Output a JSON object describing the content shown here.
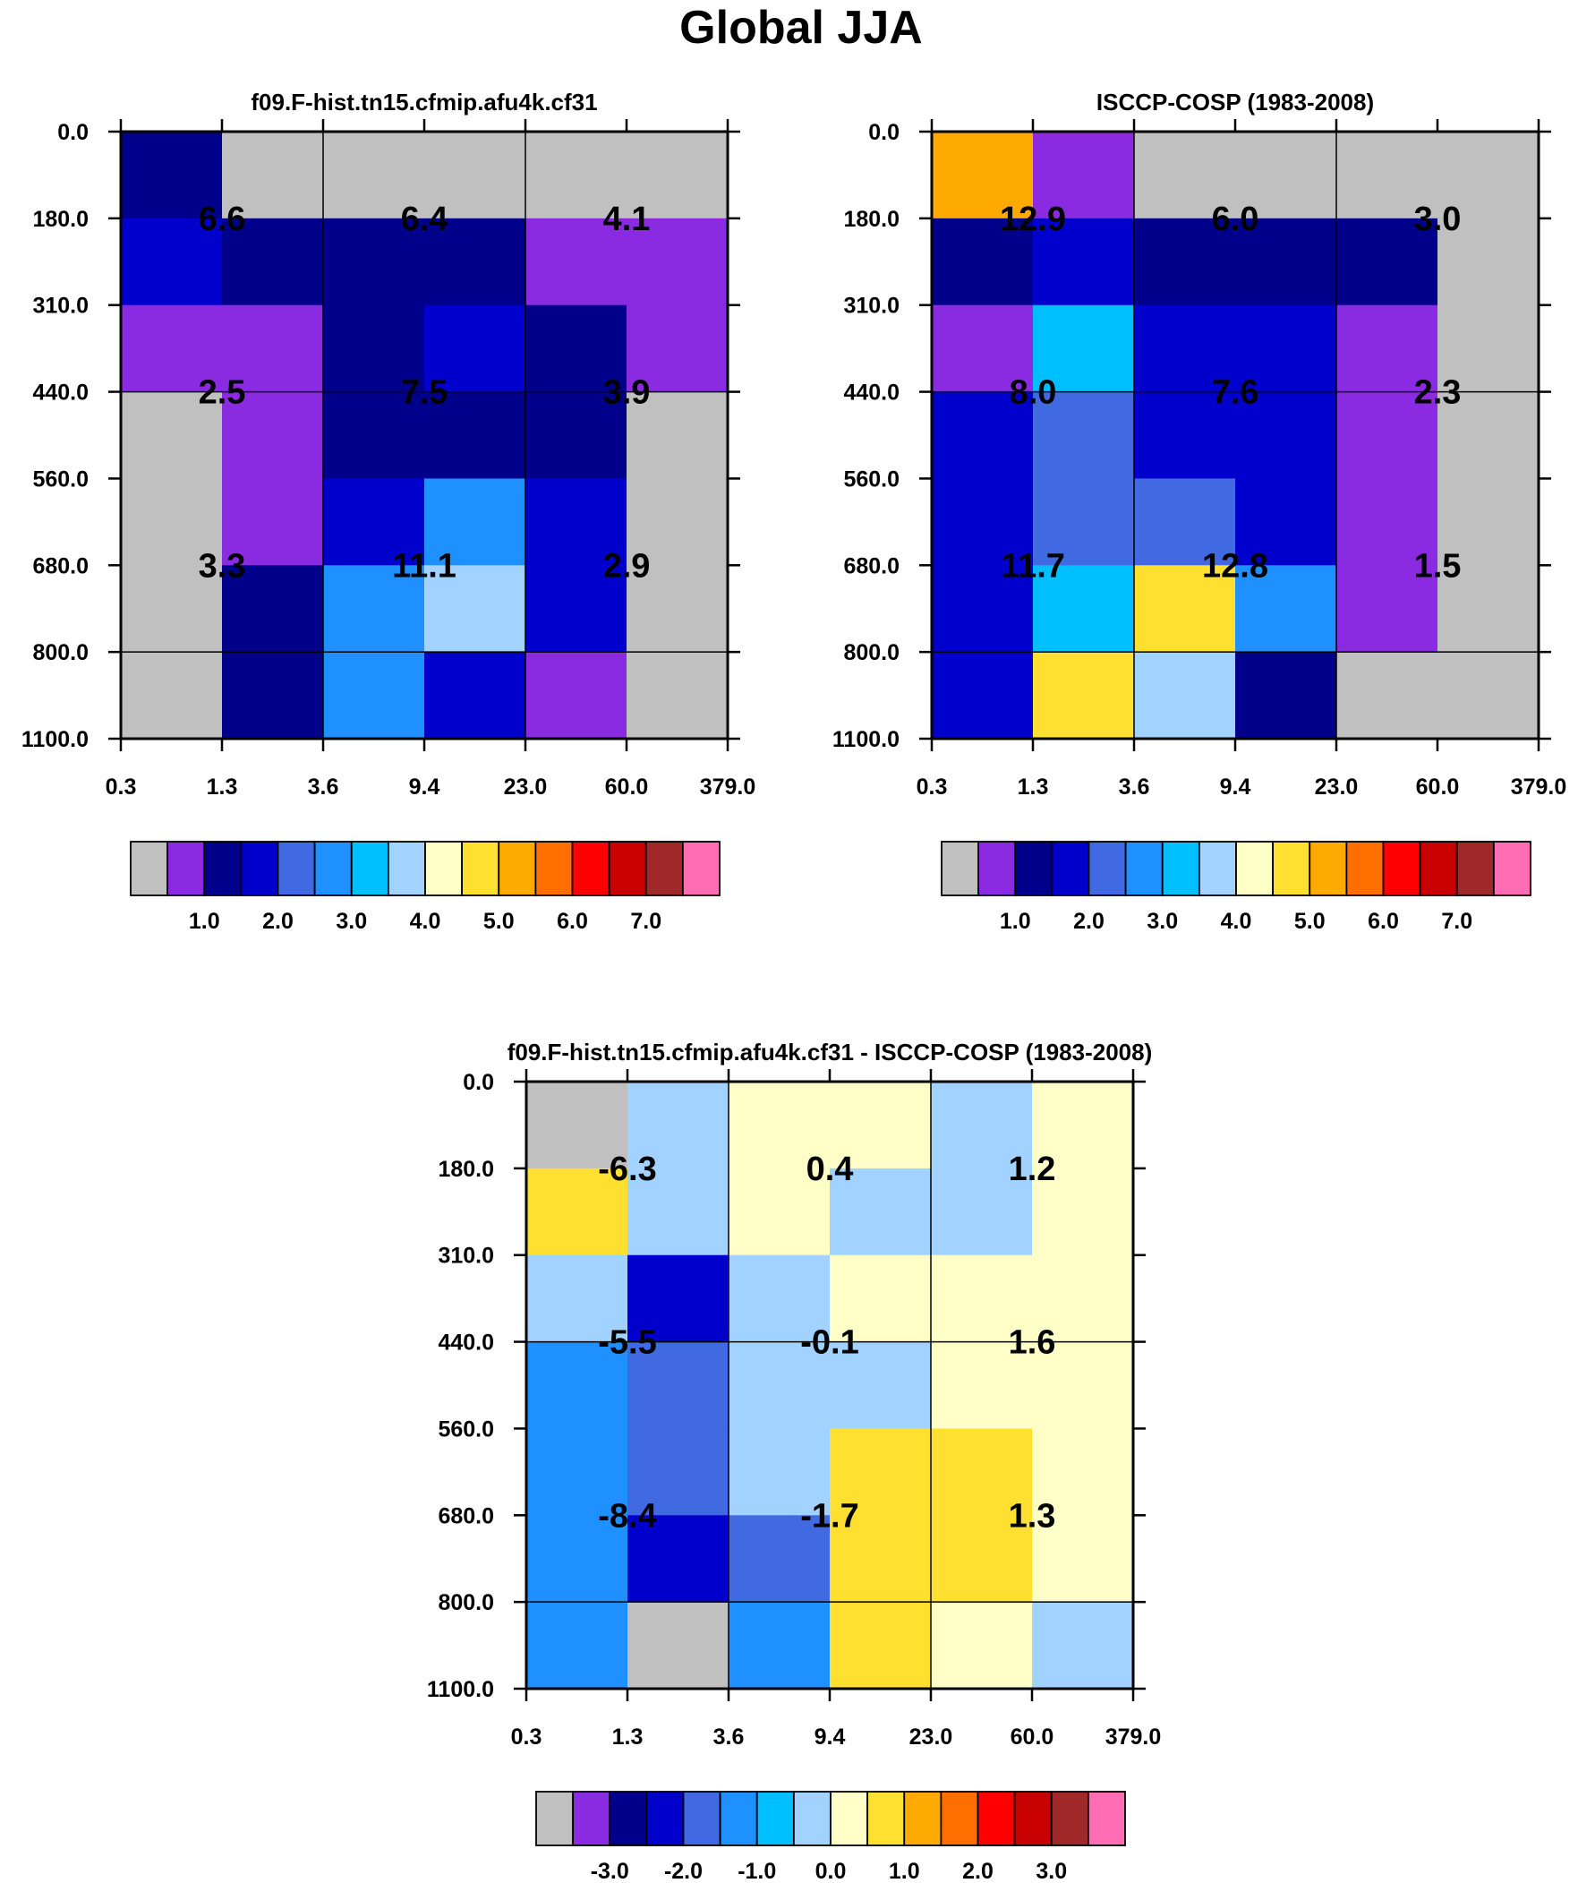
{
  "title": "Global JJA",
  "palettes": {
    "abs": [
      "#c0c0c0",
      "#8a2be2",
      "#00008b",
      "#0000cd",
      "#4169e1",
      "#1e90ff",
      "#00bfff",
      "#a2d2ff",
      "#ffffc8",
      "#ffe030",
      "#ffaa00",
      "#ff6e00",
      "#ff0000",
      "#c80000",
      "#a02828",
      "#ff6eb4"
    ],
    "diff": [
      "#c0c0c0",
      "#8a2be2",
      "#00008b",
      "#0000cd",
      "#4169e1",
      "#1e90ff",
      "#00bfff",
      "#a2d2ff",
      "#ffffc8",
      "#ffe030",
      "#ffaa00",
      "#ff6e00",
      "#ff0000",
      "#c80000",
      "#a02828",
      "#ff6eb4"
    ]
  },
  "chart_data": [
    {
      "type": "heatmap",
      "title": "f09.F-hist.tn15.cfmip.afu4k.cf31",
      "x_ticks": [
        "0.3",
        "1.3",
        "3.6",
        "9.4",
        "23.0",
        "60.0",
        "379.0"
      ],
      "y_ticks": [
        "0.0",
        "180.0",
        "310.0",
        "440.0",
        "560.0",
        "680.0",
        "800.0",
        "1100.0"
      ],
      "cell_color_index": [
        [
          2,
          0,
          0,
          0,
          0,
          0
        ],
        [
          3,
          2,
          2,
          2,
          1,
          1
        ],
        [
          1,
          1,
          2,
          3,
          2,
          1
        ],
        [
          0,
          1,
          2,
          2,
          2,
          0
        ],
        [
          0,
          1,
          3,
          5,
          3,
          0
        ],
        [
          0,
          2,
          5,
          7,
          3,
          0
        ],
        [
          0,
          2,
          5,
          3,
          1,
          0
        ]
      ],
      "annotations": [
        {
          "col": 1,
          "row": 1,
          "text": "6.6"
        },
        {
          "col": 3,
          "row": 1,
          "text": "6.4"
        },
        {
          "col": 5,
          "row": 1,
          "text": "4.1"
        },
        {
          "col": 1,
          "row": 3,
          "text": "2.5"
        },
        {
          "col": 3,
          "row": 3,
          "text": "7.5"
        },
        {
          "col": 5,
          "row": 3,
          "text": "3.9"
        },
        {
          "col": 1,
          "row": 5,
          "text": "3.3"
        },
        {
          "col": 3,
          "row": 5,
          "text": "11.1"
        },
        {
          "col": 5,
          "row": 5,
          "text": "2.9"
        }
      ],
      "colorbar": {
        "palette": "abs",
        "labels": [
          {
            "after_box": 2,
            "text": "1.0"
          },
          {
            "after_box": 4,
            "text": "2.0"
          },
          {
            "after_box": 6,
            "text": "3.0"
          },
          {
            "after_box": 8,
            "text": "4.0"
          },
          {
            "after_box": 10,
            "text": "5.0"
          },
          {
            "after_box": 12,
            "text": "6.0"
          },
          {
            "after_box": 14,
            "text": "7.0"
          }
        ]
      }
    },
    {
      "type": "heatmap",
      "title": "ISCCP-COSP (1983-2008)",
      "x_ticks": [
        "0.3",
        "1.3",
        "3.6",
        "9.4",
        "23.0",
        "60.0",
        "379.0"
      ],
      "y_ticks": [
        "0.0",
        "180.0",
        "310.0",
        "440.0",
        "560.0",
        "680.0",
        "800.0",
        "1100.0"
      ],
      "cell_color_index": [
        [
          10,
          1,
          0,
          0,
          0,
          0
        ],
        [
          2,
          3,
          2,
          2,
          2,
          0
        ],
        [
          1,
          6,
          3,
          3,
          1,
          0
        ],
        [
          3,
          4,
          3,
          3,
          1,
          0
        ],
        [
          3,
          4,
          4,
          3,
          1,
          0
        ],
        [
          3,
          6,
          9,
          5,
          1,
          0
        ],
        [
          3,
          9,
          7,
          2,
          0,
          0
        ]
      ],
      "annotations": [
        {
          "col": 1,
          "row": 1,
          "text": "12.9"
        },
        {
          "col": 3,
          "row": 1,
          "text": "6.0"
        },
        {
          "col": 5,
          "row": 1,
          "text": "3.0"
        },
        {
          "col": 1,
          "row": 3,
          "text": "8.0"
        },
        {
          "col": 3,
          "row": 3,
          "text": "7.6"
        },
        {
          "col": 5,
          "row": 3,
          "text": "2.3"
        },
        {
          "col": 1,
          "row": 5,
          "text": "11.7"
        },
        {
          "col": 3,
          "row": 5,
          "text": "12.8"
        },
        {
          "col": 5,
          "row": 5,
          "text": "1.5"
        }
      ],
      "colorbar": {
        "palette": "abs",
        "labels": [
          {
            "after_box": 2,
            "text": "1.0"
          },
          {
            "after_box": 4,
            "text": "2.0"
          },
          {
            "after_box": 6,
            "text": "3.0"
          },
          {
            "after_box": 8,
            "text": "4.0"
          },
          {
            "after_box": 10,
            "text": "5.0"
          },
          {
            "after_box": 12,
            "text": "6.0"
          },
          {
            "after_box": 14,
            "text": "7.0"
          }
        ]
      }
    },
    {
      "type": "heatmap",
      "title": "f09.F-hist.tn15.cfmip.afu4k.cf31 - ISCCP-COSP (1983-2008)",
      "x_ticks": [
        "0.3",
        "1.3",
        "3.6",
        "9.4",
        "23.0",
        "60.0",
        "379.0"
      ],
      "y_ticks": [
        "0.0",
        "180.0",
        "310.0",
        "440.0",
        "560.0",
        "680.0",
        "800.0",
        "1100.0"
      ],
      "cell_color_index": [
        [
          0,
          7,
          8,
          8,
          7,
          8
        ],
        [
          9,
          7,
          8,
          7,
          7,
          8
        ],
        [
          7,
          3,
          7,
          8,
          8,
          8
        ],
        [
          5,
          4,
          7,
          7,
          8,
          8
        ],
        [
          5,
          4,
          7,
          9,
          9,
          8
        ],
        [
          5,
          3,
          4,
          9,
          9,
          8
        ],
        [
          5,
          0,
          5,
          9,
          8,
          7
        ]
      ],
      "annotations": [
        {
          "col": 1,
          "row": 1,
          "text": "-6.3"
        },
        {
          "col": 3,
          "row": 1,
          "text": "0.4"
        },
        {
          "col": 5,
          "row": 1,
          "text": "1.2"
        },
        {
          "col": 1,
          "row": 3,
          "text": "-5.5"
        },
        {
          "col": 3,
          "row": 3,
          "text": "-0.1"
        },
        {
          "col": 5,
          "row": 3,
          "text": "1.6"
        },
        {
          "col": 1,
          "row": 5,
          "text": "-8.4"
        },
        {
          "col": 3,
          "row": 5,
          "text": "-1.7"
        },
        {
          "col": 5,
          "row": 5,
          "text": "1.3"
        }
      ],
      "colorbar": {
        "palette": "diff",
        "labels": [
          {
            "after_box": 2,
            "text": "-3.0"
          },
          {
            "after_box": 4,
            "text": "-2.0"
          },
          {
            "after_box": 6,
            "text": "-1.0"
          },
          {
            "after_box": 8,
            "text": "0.0"
          },
          {
            "after_box": 10,
            "text": "1.0"
          },
          {
            "after_box": 12,
            "text": "2.0"
          },
          {
            "after_box": 14,
            "text": "3.0"
          }
        ]
      }
    }
  ]
}
